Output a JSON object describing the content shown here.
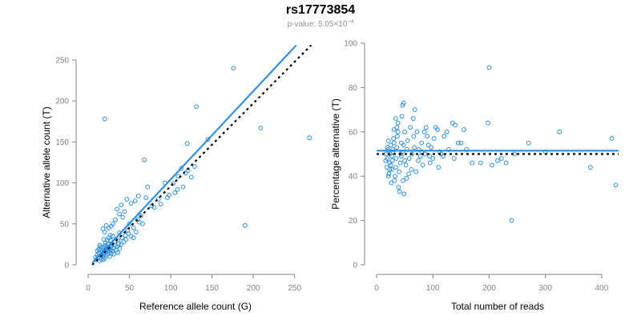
{
  "header": {
    "title": "rs17773854",
    "subtitle_prefix": "p-value: 5.05×10",
    "subtitle_exp": "−4"
  },
  "colors": {
    "points": "#2b8fe0",
    "fit": "#1e88e5",
    "reference": "#000000",
    "axis": "#808080"
  },
  "chart_data": [
    {
      "type": "scatter",
      "xlabel": "Reference allele count (G)",
      "ylabel": "Alternative allele count (T)",
      "xlim": [
        0,
        260
      ],
      "ylim": [
        0,
        250
      ],
      "xticks": [
        0,
        50,
        100,
        150,
        200,
        250
      ],
      "yticks": [
        0,
        50,
        100,
        150,
        200,
        250
      ],
      "fit_line": {
        "x": [
          5,
          252
        ],
        "y": [
          2,
          268
        ]
      },
      "reference_line": {
        "x": [
          5,
          270
        ],
        "y": [
          0,
          268
        ]
      },
      "points": [
        [
          20,
          178
        ],
        [
          176,
          240
        ],
        [
          131,
          193
        ],
        [
          209,
          167
        ],
        [
          268,
          155
        ],
        [
          190,
          48
        ],
        [
          68,
          128
        ],
        [
          120,
          148
        ],
        [
          145,
          153
        ],
        [
          113,
          118
        ],
        [
          118,
          112
        ],
        [
          109,
          108
        ],
        [
          125,
          107
        ],
        [
          115,
          95
        ],
        [
          103,
          99
        ],
        [
          98,
          85
        ],
        [
          93,
          100
        ],
        [
          108,
          92
        ],
        [
          72,
          95
        ],
        [
          85,
          80
        ],
        [
          77,
          72
        ],
        [
          70,
          82
        ],
        [
          61,
          84
        ],
        [
          57,
          78
        ],
        [
          47,
          80
        ],
        [
          52,
          75
        ],
        [
          40,
          73
        ],
        [
          44,
          65
        ],
        [
          42,
          58
        ],
        [
          38,
          62
        ],
        [
          35,
          68
        ],
        [
          33,
          55
        ],
        [
          30,
          50
        ],
        [
          28,
          47
        ],
        [
          25,
          45
        ],
        [
          22,
          48
        ],
        [
          20,
          40
        ],
        [
          18,
          44
        ],
        [
          50,
          50
        ],
        [
          55,
          45
        ],
        [
          48,
          42
        ],
        [
          60,
          55
        ],
        [
          64,
          60
        ],
        [
          58,
          40
        ],
        [
          45,
          36
        ],
        [
          38,
          39
        ],
        [
          41,
          33
        ],
        [
          36,
          30
        ],
        [
          32,
          28
        ],
        [
          30,
          35
        ],
        [
          27,
          30
        ],
        [
          25,
          25
        ],
        [
          23,
          22
        ],
        [
          21,
          27
        ],
        [
          19,
          31
        ],
        [
          17,
          20
        ],
        [
          15,
          18
        ],
        [
          14,
          24
        ],
        [
          13,
          14
        ],
        [
          16,
          12
        ],
        [
          18,
          10
        ],
        [
          20,
          15
        ],
        [
          22,
          18
        ],
        [
          24,
          20
        ],
        [
          26,
          16
        ],
        [
          28,
          22
        ],
        [
          29,
          25
        ],
        [
          31,
          20
        ],
        [
          33,
          24
        ],
        [
          35,
          22
        ],
        [
          37,
          26
        ],
        [
          12,
          9
        ],
        [
          11,
          12
        ],
        [
          10,
          6
        ],
        [
          9,
          9
        ],
        [
          14,
          5
        ],
        [
          16,
          7
        ],
        [
          18,
          6
        ],
        [
          20,
          8
        ],
        [
          22,
          11
        ],
        [
          24,
          13
        ],
        [
          26,
          10
        ],
        [
          28,
          14
        ],
        [
          19,
          22
        ],
        [
          21,
          24
        ],
        [
          23,
          30
        ],
        [
          25,
          33
        ],
        [
          27,
          36
        ],
        [
          17,
          16
        ],
        [
          15,
          22
        ],
        [
          13,
          19
        ],
        [
          11,
          17
        ],
        [
          19,
          13
        ],
        [
          21,
          19
        ],
        [
          23,
          16
        ],
        [
          25,
          21
        ],
        [
          27,
          19
        ],
        [
          29,
          17
        ],
        [
          31,
          13
        ],
        [
          34,
          18
        ],
        [
          36,
          15
        ],
        [
          38,
          20
        ],
        [
          40,
          25
        ],
        [
          43,
          28
        ],
        [
          46,
          31
        ],
        [
          49,
          38
        ],
        [
          52,
          35
        ],
        [
          55,
          33
        ],
        [
          62,
          52
        ],
        [
          66,
          50
        ],
        [
          80,
          70
        ],
        [
          88,
          74
        ],
        [
          96,
          82
        ],
        [
          105,
          88
        ],
        [
          121,
          115
        ],
        [
          129,
          120
        ]
      ]
    },
    {
      "type": "scatter",
      "xlabel": "Total number of reads",
      "ylabel": "Percentage alternative (T)",
      "xlim": [
        0,
        430
      ],
      "ylim": [
        0,
        100
      ],
      "xticks": [
        0,
        100,
        200,
        300,
        400
      ],
      "yticks": [
        0,
        20,
        40,
        60,
        80,
        100
      ],
      "fit_line": {
        "x": [
          0,
          430
        ],
        "y": [
          51.5,
          51.5
        ]
      },
      "reference_line": {
        "x": [
          0,
          430
        ],
        "y": [
          50,
          50
        ]
      },
      "points": [
        [
          200,
          89
        ],
        [
          240,
          20
        ],
        [
          425,
          36
        ],
        [
          418,
          57
        ],
        [
          380,
          44
        ],
        [
          325,
          60
        ],
        [
          300,
          51
        ],
        [
          270,
          55
        ],
        [
          245,
          50
        ],
        [
          230,
          46
        ],
        [
          222,
          48
        ],
        [
          215,
          47
        ],
        [
          205,
          45
        ],
        [
          198,
          64
        ],
        [
          185,
          46
        ],
        [
          170,
          46
        ],
        [
          160,
          52
        ],
        [
          155,
          61
        ],
        [
          150,
          55
        ],
        [
          140,
          63
        ],
        [
          135,
          64
        ],
        [
          125,
          60
        ],
        [
          120,
          58
        ],
        [
          115,
          50
        ],
        [
          110,
          44
        ],
        [
          105,
          62
        ],
        [
          100,
          48
        ],
        [
          95,
          46
        ],
        [
          90,
          58
        ],
        [
          85,
          60
        ],
        [
          80,
          55
        ],
        [
          75,
          52
        ],
        [
          70,
          42
        ],
        [
          68,
          70
        ],
        [
          65,
          66
        ],
        [
          60,
          62
        ],
        [
          55,
          56
        ],
        [
          52,
          45
        ],
        [
          50,
          60
        ],
        [
          48,
          73
        ],
        [
          46,
          72
        ],
        [
          45,
          67
        ],
        [
          44,
          55
        ],
        [
          43,
          50
        ],
        [
          42,
          46
        ],
        [
          40,
          42
        ],
        [
          38,
          64
        ],
        [
          37,
          58
        ],
        [
          36,
          53
        ],
        [
          35,
          48
        ],
        [
          34,
          44
        ],
        [
          33,
          40
        ],
        [
          32,
          38
        ],
        [
          31,
          61
        ],
        [
          30,
          57
        ],
        [
          29,
          52
        ],
        [
          28,
          47
        ],
        [
          27,
          43
        ],
        [
          26,
          37
        ],
        [
          25,
          54
        ],
        [
          24,
          50
        ],
        [
          23,
          46
        ],
        [
          22,
          41
        ],
        [
          21,
          56
        ],
        [
          20,
          52
        ],
        [
          19,
          48
        ],
        [
          18,
          44
        ],
        [
          17,
          50
        ],
        [
          16,
          47
        ],
        [
          39,
          35
        ],
        [
          41,
          33
        ],
        [
          47,
          38
        ],
        [
          49,
          32
        ],
        [
          53,
          39
        ],
        [
          57,
          41
        ],
        [
          62,
          43
        ],
        [
          66,
          58
        ],
        [
          72,
          60
        ],
        [
          78,
          49
        ],
        [
          82,
          45
        ],
        [
          88,
          62
        ],
        [
          92,
          54
        ],
        [
          97,
          53
        ],
        [
          102,
          57
        ],
        [
          108,
          61
        ],
        [
          112,
          51
        ],
        [
          118,
          49
        ],
        [
          128,
          52
        ],
        [
          138,
          48
        ],
        [
          145,
          55
        ],
        [
          34,
          66
        ],
        [
          36,
          62
        ],
        [
          38,
          60
        ],
        [
          31,
          55
        ],
        [
          29,
          51
        ],
        [
          27,
          49
        ],
        [
          25,
          45
        ],
        [
          23,
          43
        ],
        [
          21,
          40
        ],
        [
          19,
          53
        ],
        [
          44,
          49
        ],
        [
          46,
          51
        ],
        [
          48,
          54
        ],
        [
          50,
          47
        ],
        [
          54,
          52
        ],
        [
          58,
          48
        ],
        [
          63,
          50
        ],
        [
          67,
          53
        ],
        [
          74,
          47
        ],
        [
          80,
          51
        ],
        [
          86,
          50
        ],
        [
          94,
          49
        ]
      ]
    }
  ]
}
